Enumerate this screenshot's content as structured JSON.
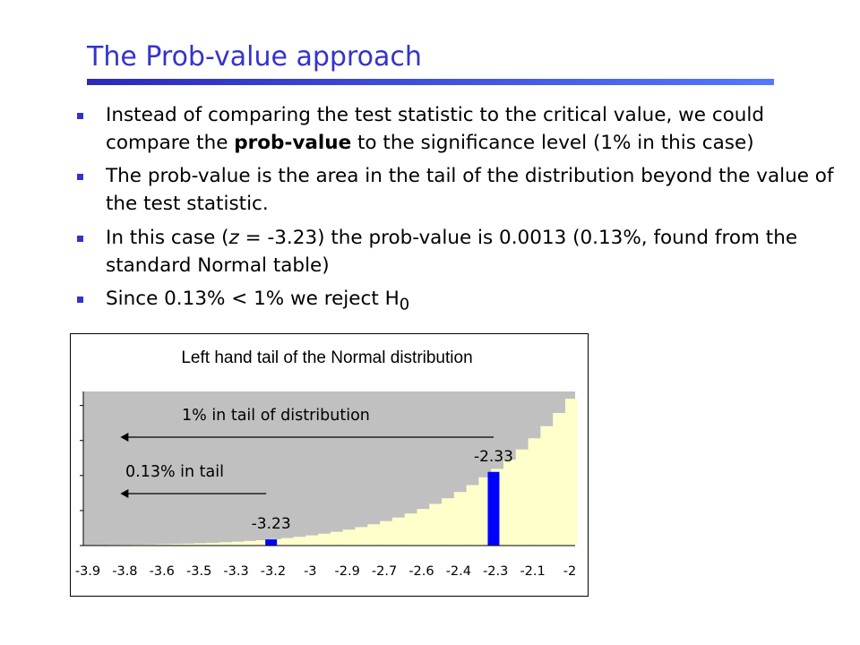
{
  "slide": {
    "title": "The Prob-value approach",
    "bullets": [
      {
        "pre": "Instead of comparing the test statistic to the critical value, we could compare the ",
        "bold": "prob-value",
        "post": " to the significance level (1% in this case)"
      },
      {
        "text": "The prob-value is the area in the tail of the distribution beyond the value of the test statistic."
      },
      {
        "pre": "In this case (",
        "italic": "z",
        "post": " = -3.23) the prob-value is 0.0013 (0.13%, found from the standard Normal table)"
      },
      {
        "pre": "Since 0.13% < 1% we reject H",
        "sub": "0"
      }
    ]
  },
  "chart_data": {
    "type": "bar",
    "title": "Left hand tail of the Normal distribution",
    "categories": [
      "-3.9",
      "-3.8",
      "-3.6",
      "-3.5",
      "-3.3",
      "-3.2",
      "-3",
      "-2.9",
      "-2.7",
      "-2.6",
      "-2.4",
      "-2.3",
      "-2.1",
      "-2"
    ],
    "x_range": [
      -3.99,
      -2.0
    ],
    "bin_width": 0.05,
    "ylim": [
      0,
      0.055
    ],
    "grid": false,
    "legend": "none",
    "colors": {
      "plot_bg": "#c0c0c0",
      "bars": "#ffffcc",
      "highlight": "#0000ff",
      "border": "#000000"
    },
    "highlighted_bars": [
      {
        "x": -3.23,
        "label": "-3.23",
        "value": 0.0022
      },
      {
        "x": -2.33,
        "label": "-2.33",
        "value": 0.0263
      }
    ],
    "annotations": [
      {
        "text": "1% in tail of distribution",
        "arrow_from_x": -2.33,
        "arrow_to_x": -3.84
      },
      {
        "text": "0.13% in tail",
        "arrow_from_x": -3.25,
        "arrow_to_x": -3.84
      }
    ]
  }
}
